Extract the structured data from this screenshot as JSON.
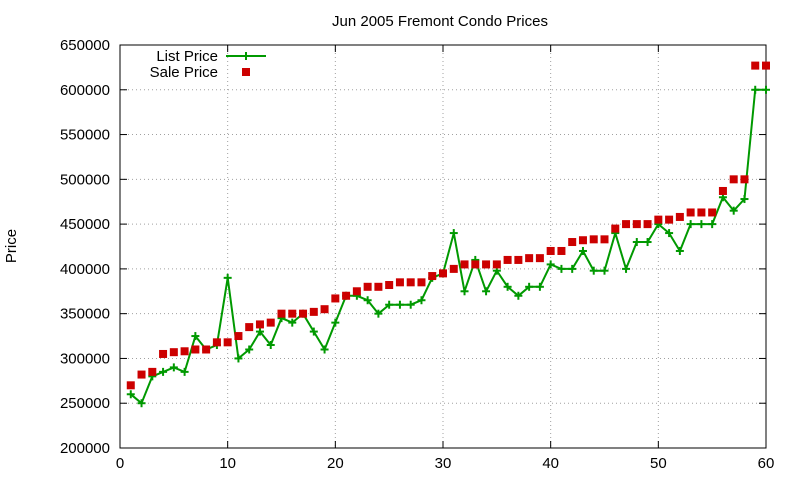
{
  "chart_data": {
    "type": "line",
    "title": "Jun 2005 Fremont Condo Prices",
    "xlabel": "",
    "ylabel": "Price",
    "xlim": [
      0,
      60
    ],
    "ylim": [
      200000,
      650000
    ],
    "xticks": [
      0,
      10,
      20,
      30,
      40,
      50,
      60
    ],
    "yticks": [
      200000,
      250000,
      300000,
      350000,
      400000,
      450000,
      500000,
      550000,
      600000,
      650000
    ],
    "grid": true,
    "legend_position": "top-left",
    "x": [
      1,
      2,
      3,
      4,
      5,
      6,
      7,
      8,
      9,
      10,
      11,
      12,
      13,
      14,
      15,
      16,
      17,
      18,
      19,
      20,
      21,
      22,
      23,
      24,
      25,
      26,
      27,
      28,
      29,
      30,
      31,
      32,
      33,
      34,
      35,
      36,
      37,
      38,
      39,
      40,
      41,
      42,
      43,
      44,
      45,
      46,
      47,
      48,
      49,
      50,
      51,
      52,
      53,
      54,
      55,
      56,
      57,
      58,
      59,
      60
    ],
    "series": [
      {
        "name": "List Price",
        "style": "linespoints",
        "color": "#009900",
        "values": [
          260000,
          250000,
          280000,
          285000,
          290000,
          285000,
          325000,
          310000,
          315000,
          390000,
          300000,
          310000,
          330000,
          315000,
          345000,
          340000,
          350000,
          330000,
          310000,
          340000,
          370000,
          370000,
          365000,
          350000,
          360000,
          360000,
          360000,
          365000,
          390000,
          395000,
          440000,
          375000,
          410000,
          375000,
          398000,
          380000,
          370000,
          380000,
          380000,
          405000,
          400000,
          400000,
          420000,
          398000,
          398000,
          440000,
          400000,
          430000,
          430000,
          450000,
          440000,
          420000,
          450000,
          450000,
          450000,
          480000,
          465000,
          478000,
          600000,
          600000
        ]
      },
      {
        "name": "Sale Price",
        "style": "points",
        "color": "#cc0000",
        "values": [
          270000,
          282000,
          285000,
          305000,
          307000,
          308000,
          310000,
          310000,
          318000,
          318000,
          325000,
          335000,
          338000,
          340000,
          350000,
          350000,
          350000,
          352000,
          355000,
          367000,
          370000,
          375000,
          380000,
          380000,
          382000,
          385000,
          385000,
          385000,
          392000,
          395000,
          400000,
          405000,
          405000,
          405000,
          405000,
          410000,
          410000,
          412000,
          412000,
          420000,
          420000,
          430000,
          432000,
          433000,
          433000,
          445000,
          450000,
          450000,
          450000,
          455000,
          455000,
          458000,
          463000,
          463000,
          463000,
          487000,
          500000,
          500000,
          627000,
          627000
        ]
      }
    ]
  }
}
